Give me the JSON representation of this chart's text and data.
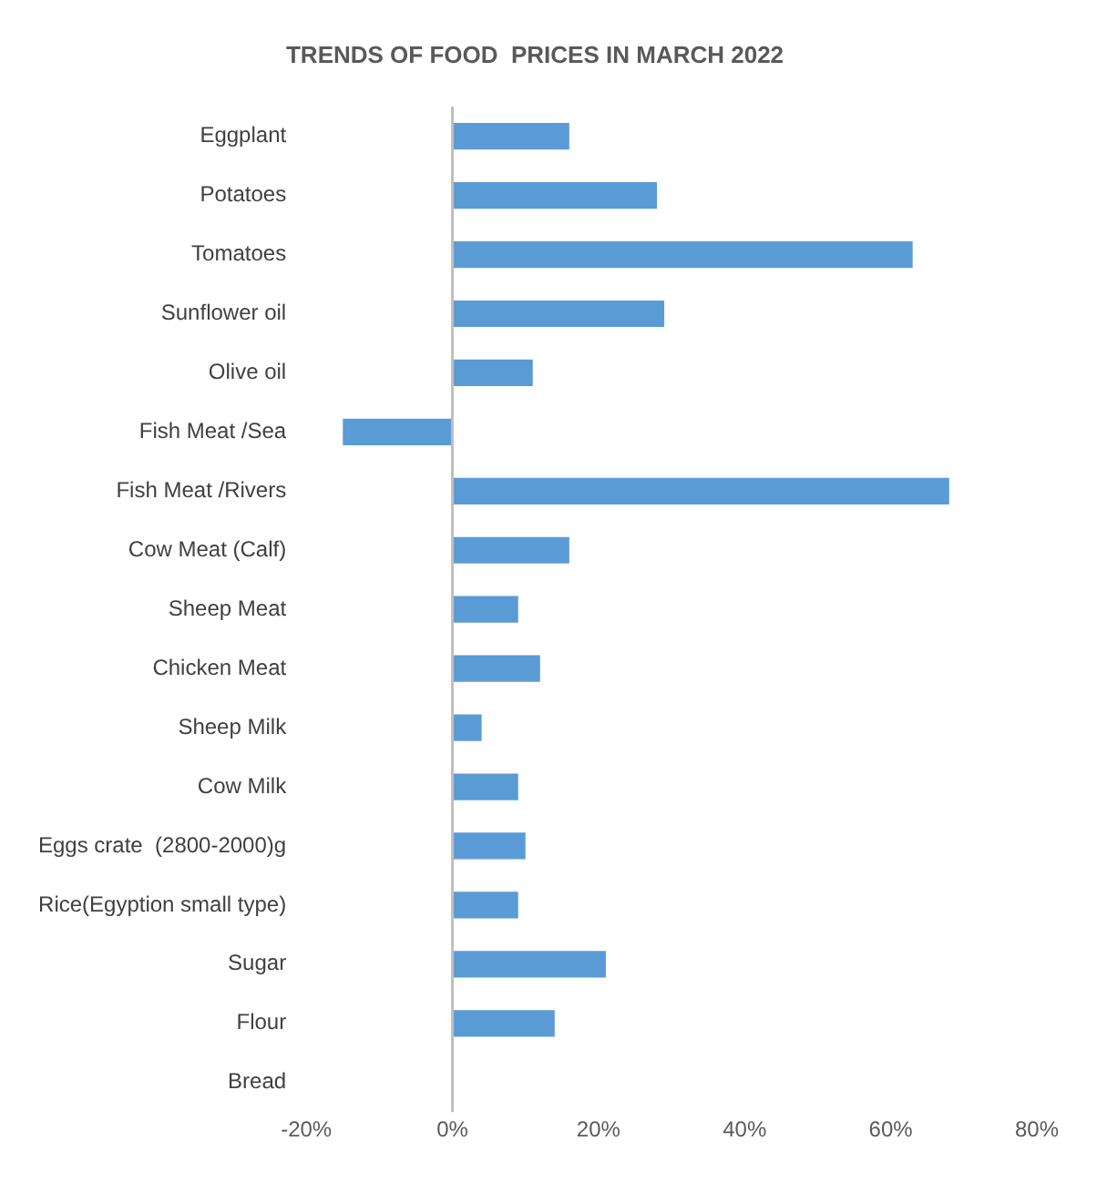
{
  "chart_data": {
    "type": "bar",
    "orientation": "horizontal",
    "title": "TRENDS OF FOOD  PRICES IN MARCH 2022",
    "categories": [
      "Eggplant",
      "Potatoes",
      "Tomatoes",
      "Sunflower oil",
      "Olive oil",
      "Fish Meat /Sea",
      "Fish Meat /Rivers",
      "Cow Meat (Calf)",
      "Sheep Meat",
      "Chicken Meat",
      "Sheep Milk",
      "Cow Milk",
      "Eggs crate  (2800-2000)g",
      "Rice(Egyption small type)",
      "Sugar",
      "Flour",
      "Bread"
    ],
    "values": [
      16,
      28,
      63,
      29,
      11,
      -15,
      68,
      16,
      9,
      12,
      4,
      9,
      10,
      9,
      21,
      14,
      0
    ],
    "color": "#5b9bd5",
    "xlim": [
      -20,
      80
    ],
    "xticks": [
      {
        "value": -20,
        "label": "-20%"
      },
      {
        "value": 0,
        "label": "0%"
      },
      {
        "value": 20,
        "label": "20%"
      },
      {
        "value": 40,
        "label": "40%"
      },
      {
        "value": 60,
        "label": "60%"
      },
      {
        "value": 80,
        "label": "80%"
      }
    ],
    "ref_lines": [
      {
        "axis": "x",
        "value": 0,
        "color": "#bfbfbf"
      }
    ],
    "legend": false
  }
}
